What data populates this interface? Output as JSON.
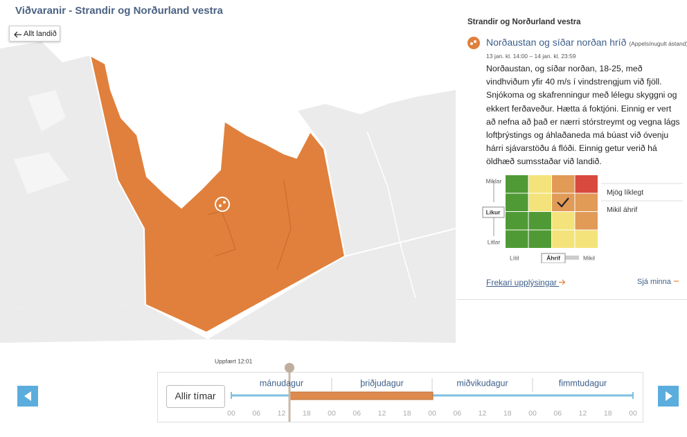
{
  "header": {
    "title": "Viðvaranir - Strandir og Norðurland vestra"
  },
  "map": {
    "back_button": "Allt landið"
  },
  "panel": {
    "region": "Strandir og Norðurland vestra",
    "warning": {
      "title": "Norðaustan og síðar norðan hríð",
      "level": "(Appelsínugult ástand)",
      "time": "13 jan. kl. 14:00 – 14 jan. kl. 23:59",
      "text": "Norðaustan, og síðar norðan, 18-25, með vindhviðum yfir 40 m/s í vindstrengjum við fjöll. Snjókoma og skafrenningur með lélegu skyggni og ekkert ferðaveður. Hætta á foktjóni. Einnig er vert að nefna að það er nærri stórstreymt og vegna lágs loftþrýstings og áhlaðaneda má búast við óvenju hárri sjávarstöðu á flóði. Einnig getur verið há öldhæð sumsstaðar við landið."
    },
    "matrix": {
      "y_top": "Miklar",
      "y_label": "Líkur",
      "y_bottom": "Litlar",
      "x_left": "Lítil",
      "x_label": "Áhrif",
      "x_right": "Mikil",
      "legend": [
        "Mjög líklegt",
        "Mikil áhrif"
      ]
    },
    "more_link": "Frekari upplýsingar",
    "less_link": "Sjá minna"
  },
  "timeline": {
    "updated": "Uppfært 12:01",
    "all_button": "Allir tímar",
    "days": [
      "mánudagur",
      "þriðjudagur",
      "miðvikudagur",
      "fimmtudagur"
    ],
    "hours": [
      "00",
      "06",
      "12",
      "18",
      "00",
      "06",
      "12",
      "18",
      "00",
      "06",
      "12",
      "18",
      "00",
      "06",
      "12",
      "18",
      "00"
    ]
  }
}
